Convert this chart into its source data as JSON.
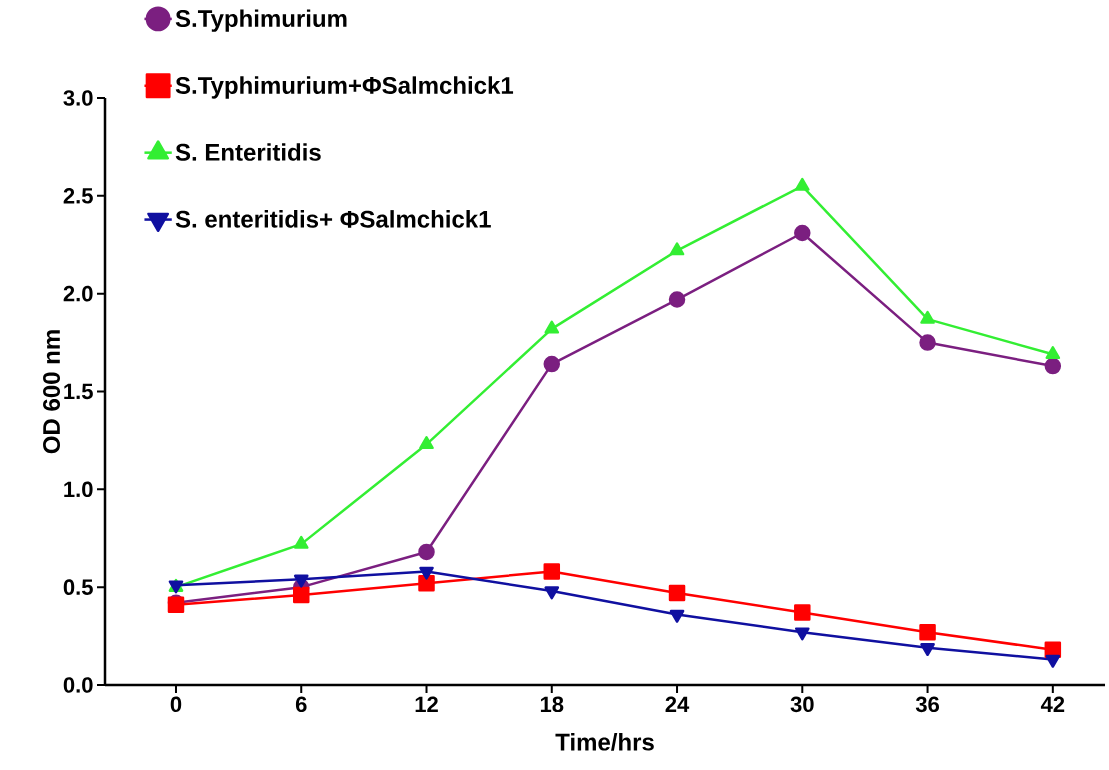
{
  "chart_data": {
    "type": "line",
    "xlabel": "Time/hrs",
    "ylabel": "OD 600 nm",
    "x": [
      0,
      6,
      12,
      18,
      24,
      30,
      36,
      42
    ],
    "xlim": [
      -3.4,
      44.5
    ],
    "xticks": [
      0,
      6,
      12,
      18,
      24,
      30,
      36,
      42
    ],
    "ylim": [
      0,
      3
    ],
    "yticks": [
      {
        "value": 0,
        "label": "0.0"
      },
      0.5,
      {
        "value": 1,
        "label": "1.0"
      },
      1.5,
      {
        "value": 2,
        "label": "2.0"
      },
      2.5,
      {
        "value": 3,
        "label": "3.0"
      }
    ],
    "legend": "top left",
    "grid": false,
    "line_style": "solid",
    "series": [
      {
        "name": "S.Typhimurium",
        "color": "#7b1f80",
        "marker": "circle",
        "values": [
          0.42,
          0.5,
          0.68,
          1.64,
          1.97,
          2.31,
          1.75,
          1.63
        ]
      },
      {
        "name": "S.Typhimurium+ΦSalmchick1",
        "color": "#ff0000",
        "marker": "square",
        "values": [
          0.41,
          0.46,
          0.52,
          0.58,
          0.47,
          0.37,
          0.27,
          0.18
        ]
      },
      {
        "name": "S. Enteritidis",
        "color": "#33ee33",
        "marker": "triangle",
        "values": [
          0.5,
          0.72,
          1.23,
          1.82,
          2.22,
          2.55,
          1.87,
          1.69
        ]
      },
      {
        "name": "S. enteritidis+ ΦSalmchick1",
        "color": "#1010a0",
        "marker": "triangle down",
        "values": [
          0.51,
          0.54,
          0.58,
          0.48,
          0.36,
          0.27,
          0.19,
          0.13
        ]
      }
    ]
  }
}
